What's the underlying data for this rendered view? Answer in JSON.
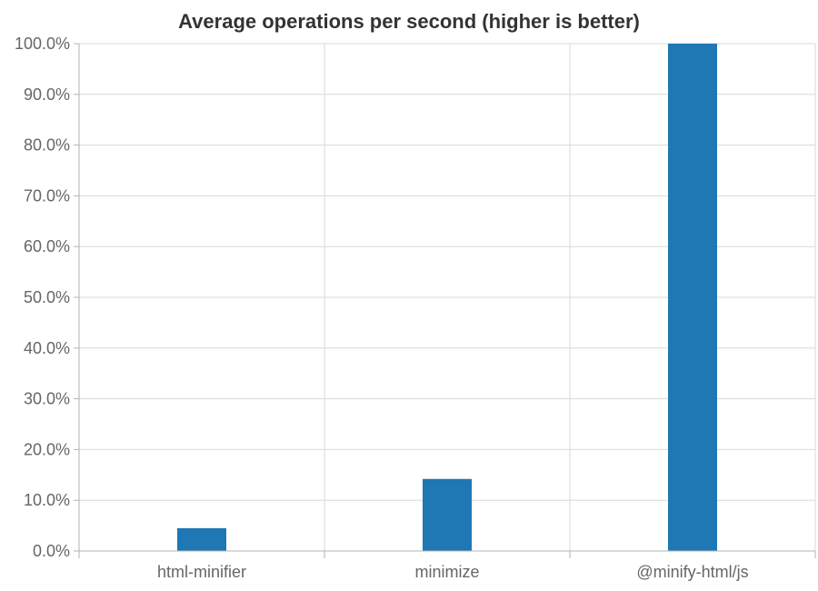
{
  "chart_data": {
    "type": "bar",
    "title": "Average operations per second (higher is better)",
    "xlabel": "",
    "ylabel": "",
    "categories": [
      "html-minifier",
      "minimize",
      "@minify-html/js"
    ],
    "values": [
      4.5,
      14.2,
      100.0
    ],
    "ylim": [
      0,
      100
    ],
    "yticks": [
      0,
      10,
      20,
      30,
      40,
      50,
      60,
      70,
      80,
      90,
      100
    ],
    "ytick_labels": [
      "0.0%",
      "10.0%",
      "20.0%",
      "30.0%",
      "40.0%",
      "50.0%",
      "60.0%",
      "70.0%",
      "80.0%",
      "90.0%",
      "100.0%"
    ],
    "grid": true,
    "legend": "none",
    "bar_color": "#1f77b4"
  }
}
